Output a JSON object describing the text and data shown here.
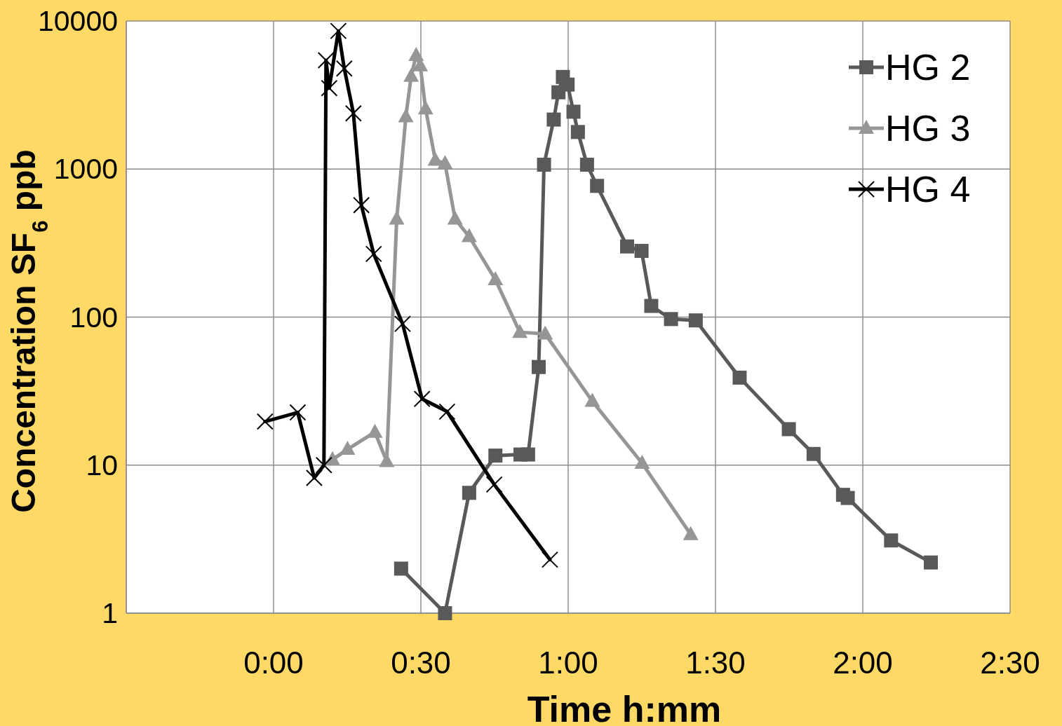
{
  "chart_data": {
    "type": "line",
    "xlabel": "Time h:mm",
    "ylabel": "Concentration SF$_{6}$ ppb",
    "log": "y",
    "grid": true,
    "legend": "top right",
    "xlim": [
      -0.5,
      2.5
    ],
    "xticks": [
      {
        "value": -0.5,
        "label": null
      },
      {
        "value": 0,
        "label": "0:00"
      },
      {
        "value": 0.5,
        "label": "0:30"
      },
      {
        "value": 1,
        "label": "1:00"
      },
      {
        "value": 1.5,
        "label": "1:30"
      },
      {
        "value": 2,
        "label": "2:00"
      },
      {
        "value": 2.5,
        "label": "2:30"
      }
    ],
    "ylim": [
      1,
      10000
    ],
    "yticks": [
      1,
      10,
      100,
      1000,
      10000
    ],
    "series": [
      {
        "name": "HG 2",
        "color": "#595959",
        "marker": "square",
        "x": [
          0.433,
          0.582,
          0.664,
          0.753,
          0.838,
          0.864,
          0.9,
          0.918,
          0.951,
          0.967,
          0.982,
          0.998,
          1.018,
          1.033,
          1.064,
          1.098,
          1.2,
          1.249,
          1.282,
          1.349,
          1.433,
          1.582,
          1.749,
          1.833,
          1.933,
          1.949,
          2.096,
          2.231
        ],
        "values": [
          2.0,
          1.0,
          6.5,
          11.6,
          11.8,
          11.8,
          46,
          1070,
          2160,
          3300,
          4190,
          3720,
          2440,
          1780,
          1070,
          770,
          300,
          280,
          119,
          97,
          95,
          39,
          17.5,
          11.9,
          6.3,
          6.0,
          3.1,
          2.2
        ]
      },
      {
        "name": "HG 3",
        "color": "#969696",
        "marker": "triangle",
        "x": [
          0.2,
          0.251,
          0.344,
          0.384,
          0.418,
          0.449,
          0.467,
          0.484,
          0.498,
          0.516,
          0.549,
          0.582,
          0.616,
          0.664,
          0.753,
          0.836,
          0.922,
          1.082,
          1.251,
          1.416
        ],
        "values": [
          10.9,
          12.8,
          16.7,
          10.6,
          460,
          2260,
          4240,
          5860,
          4990,
          2550,
          1150,
          1090,
          460,
          350,
          179,
          79,
          77,
          27,
          10.3,
          3.4
        ]
      },
      {
        "name": "HG 4",
        "color": "#000000",
        "marker": "cross",
        "x": [
          -0.029,
          0.082,
          0.138,
          0.171,
          0.178,
          0.189,
          0.22,
          0.24,
          0.271,
          0.298,
          0.34,
          0.438,
          0.504,
          0.589,
          0.749,
          0.938
        ],
        "values": [
          19.7,
          22.7,
          8.2,
          10,
          5430,
          3520,
          8570,
          4780,
          2380,
          570,
          267,
          90,
          28,
          23,
          7.4,
          2.3
        ]
      }
    ]
  }
}
